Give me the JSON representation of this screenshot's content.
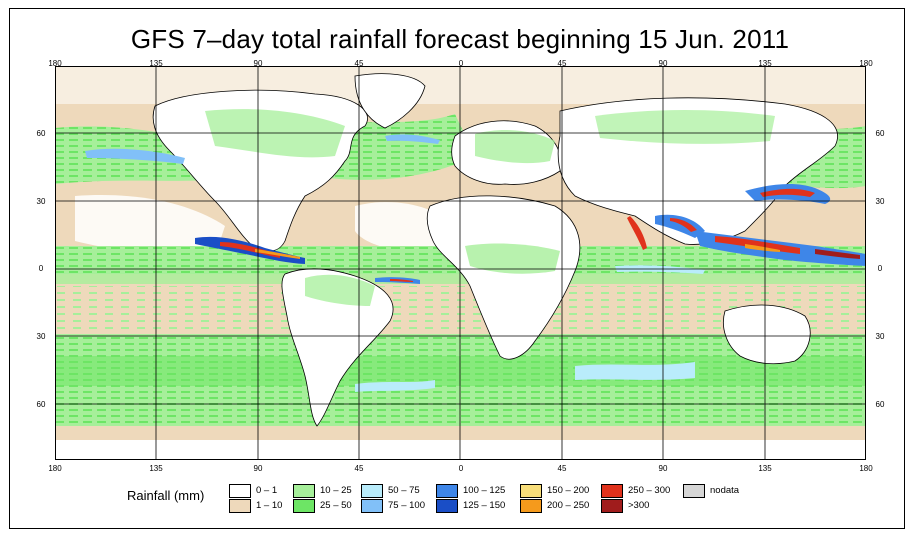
{
  "title": "GFS 7–day total rainfall forecast beginning 15 Jun. 2011",
  "lon_ticks": [
    "180",
    "135",
    "90",
    "45",
    "0",
    "45",
    "90",
    "135",
    "180"
  ],
  "lat_ticks": [
    "60",
    "30",
    "0",
    "30",
    "60"
  ],
  "legend": {
    "title": "Rainfall (mm)",
    "items": [
      {
        "label": "0 – 1",
        "color": "#ffffff"
      },
      {
        "label": "1 – 10",
        "color": "#eed9bb"
      },
      {
        "label": "10 – 25",
        "color": "#a6ef9a"
      },
      {
        "label": "25 – 50",
        "color": "#6de565"
      },
      {
        "label": "50 – 75",
        "color": "#b9ecfb"
      },
      {
        "label": "75 – 100",
        "color": "#81c0f8"
      },
      {
        "label": "100 – 125",
        "color": "#3e86e8"
      },
      {
        "label": "125 – 150",
        "color": "#1a4ec6"
      },
      {
        "label": "150 – 200",
        "color": "#f8de7a"
      },
      {
        "label": "200 – 250",
        "color": "#f59a1c"
      },
      {
        "label": "250 – 300",
        "color": "#e0321c"
      },
      {
        "label": ">300",
        "color": "#a01c1c"
      },
      {
        "label": "nodata",
        "color": "#d6d6d6"
      }
    ]
  }
}
